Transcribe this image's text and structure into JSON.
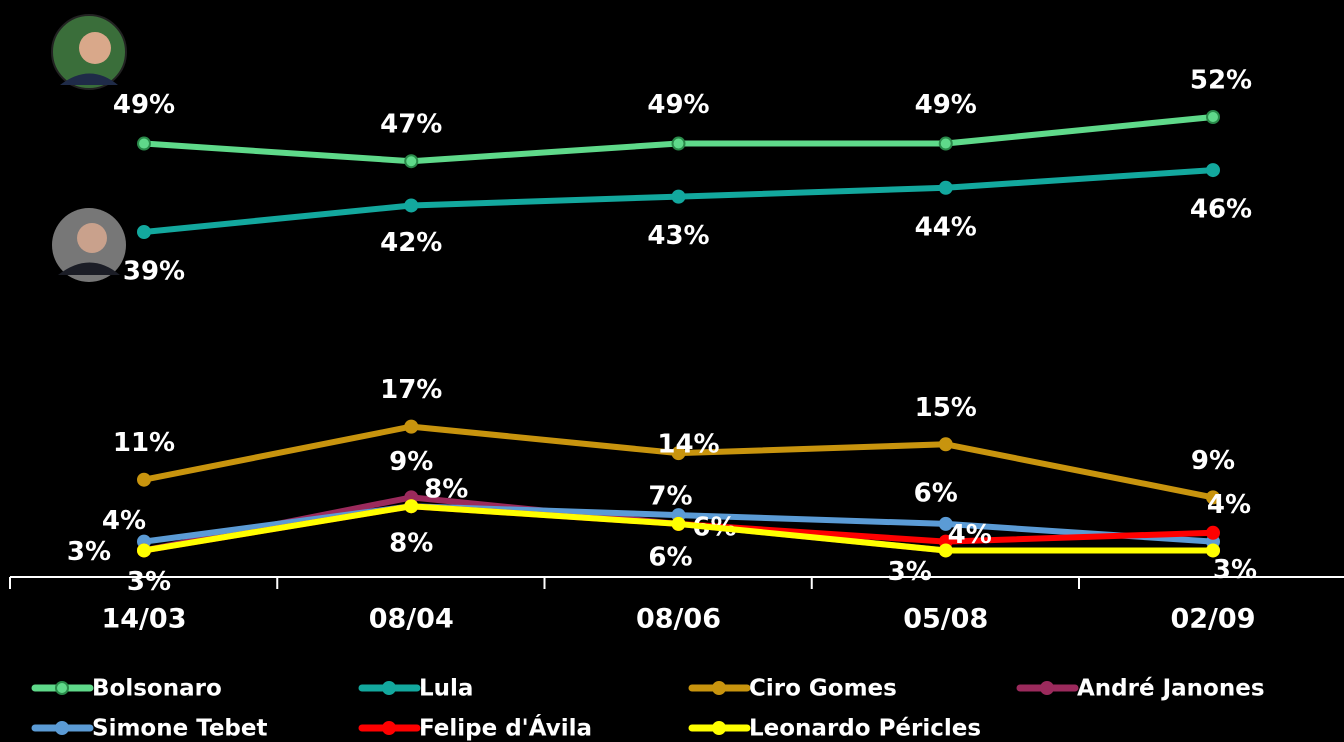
{
  "chart_data": {
    "type": "line",
    "categories": [
      "14/03",
      "08/04",
      "08/06",
      "05/08",
      "02/09"
    ],
    "ylim": [
      0,
      65
    ],
    "series": [
      {
        "name": "Bolsonaro",
        "color": "#5fd98a",
        "values": [
          49,
          47,
          49,
          49,
          52
        ],
        "value_labels": [
          "49%",
          "47%",
          "49%",
          "49%",
          "52%"
        ]
      },
      {
        "name": "Lula",
        "color": "#13a89e",
        "values": [
          39,
          42,
          43,
          44,
          46
        ],
        "value_labels": [
          "39%",
          "42%",
          "43%",
          "44%",
          "46%"
        ]
      },
      {
        "name": "Ciro Gomes",
        "color": "#c8940e",
        "values": [
          11,
          17,
          14,
          15,
          9
        ],
        "value_labels": [
          "11%",
          "17%",
          "14%",
          "15%",
          "9%"
        ]
      },
      {
        "name": "André Janones",
        "color": "#9b2a5c",
        "values": [
          3,
          9,
          6,
          3,
          3
        ],
        "value_labels": [
          "3%",
          "9%",
          null,
          null,
          null
        ]
      },
      {
        "name": "Simone Tebet",
        "color": "#5b9bd5",
        "values": [
          4,
          8,
          7,
          6,
          4
        ],
        "value_labels": [
          "4%",
          "8%",
          "7%",
          "6%",
          "4%"
        ]
      },
      {
        "name": "Felipe d'Ávila",
        "color": "#ff0000",
        "values": [
          3,
          8,
          6,
          4,
          5
        ],
        "value_labels": [
          null,
          null,
          "6%",
          "4%",
          null
        ]
      },
      {
        "name": "Leonardo Péricles",
        "color": "#ffff00",
        "values": [
          3,
          8,
          6,
          3,
          3
        ],
        "value_labels": [
          "3%",
          "8%",
          "6%",
          "3%",
          "3%"
        ]
      }
    ]
  }
}
